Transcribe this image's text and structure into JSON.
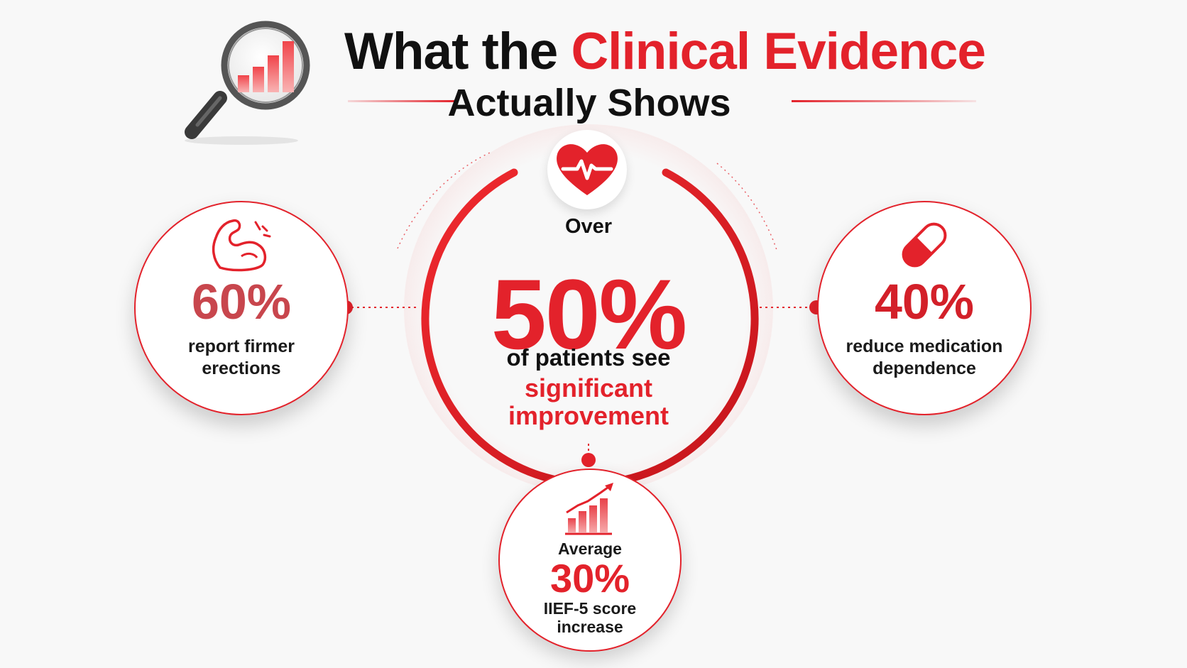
{
  "title": {
    "prefix": "What the ",
    "highlight": "Clinical Evidence",
    "line2": "Actually Shows"
  },
  "center": {
    "over": "Over",
    "value": "50%",
    "line1": "of patients see",
    "line2": "significant",
    "line3": "improvement"
  },
  "left": {
    "value": "60%",
    "label_line1": "report firmer",
    "label_line2": "erections"
  },
  "right": {
    "value": "40%",
    "label_line1": "reduce medication",
    "label_line2": "dependence"
  },
  "bottom": {
    "prefix": "Average",
    "value": "30%",
    "label_line1": "IIEF-5 score",
    "label_line2": "increase"
  },
  "icons": {
    "title": "magnifier-bar-chart-icon",
    "center": "heart-pulse-icon",
    "left": "flexed-bicep-icon",
    "right": "capsule-pill-icon",
    "bottom": "growth-chart-icon"
  },
  "colors": {
    "accent": "#e3222b",
    "text": "#111111",
    "background": "#f8f8f8"
  }
}
